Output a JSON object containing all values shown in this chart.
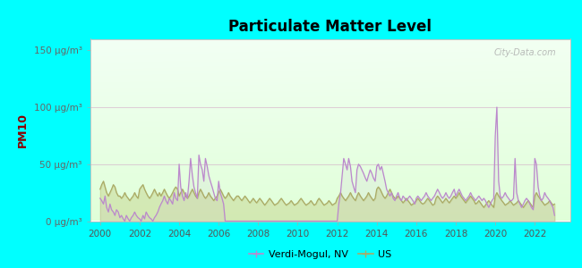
{
  "title": "Particulate Matter Level",
  "ylabel": "PM10",
  "background_outer": "#00FFFF",
  "verdi_color": "#bb88cc",
  "us_color": "#aaaa66",
  "ylim": [
    0,
    160
  ],
  "yticks": [
    0,
    50,
    100,
    150
  ],
  "ytick_labels": [
    "0 μg/m³",
    "50 μg/m³",
    "100 μg/m³",
    "150 μg/m³"
  ],
  "xlim_start": 1999.5,
  "xlim_end": 2023.8,
  "xticks": [
    2000,
    2002,
    2004,
    2006,
    2008,
    2010,
    2012,
    2014,
    2016,
    2018,
    2020,
    2022
  ],
  "verdi_x": [
    2000.0,
    2000.08,
    2000.17,
    2000.25,
    2000.33,
    2000.42,
    2000.5,
    2000.58,
    2000.67,
    2000.75,
    2000.83,
    2000.92,
    2001.0,
    2001.08,
    2001.17,
    2001.25,
    2001.33,
    2001.42,
    2001.5,
    2001.58,
    2001.67,
    2001.75,
    2001.83,
    2001.92,
    2002.0,
    2002.08,
    2002.17,
    2002.25,
    2002.33,
    2002.42,
    2002.5,
    2002.58,
    2002.67,
    2002.75,
    2002.83,
    2002.92,
    2003.0,
    2003.08,
    2003.17,
    2003.25,
    2003.33,
    2003.42,
    2003.5,
    2003.58,
    2003.67,
    2003.75,
    2003.83,
    2003.92,
    2004.0,
    2004.08,
    2004.17,
    2004.25,
    2004.33,
    2004.42,
    2004.5,
    2004.58,
    2004.67,
    2004.75,
    2004.83,
    2004.92,
    2005.0,
    2005.08,
    2005.17,
    2005.25,
    2005.33,
    2005.42,
    2005.5,
    2005.58,
    2005.67,
    2005.75,
    2005.83,
    2005.92,
    2006.0,
    2006.08,
    2006.17,
    2006.25,
    2006.33,
    2006.42,
    2006.5,
    2006.58,
    2006.67,
    2006.75,
    2006.83,
    2006.92,
    2007.0,
    2007.08,
    2007.17,
    2007.25,
    2007.33,
    2007.42,
    2007.5,
    2007.58,
    2007.67,
    2007.75,
    2007.83,
    2007.92,
    2008.0,
    2008.08,
    2008.17,
    2008.25,
    2008.33,
    2008.42,
    2008.5,
    2008.58,
    2008.67,
    2008.75,
    2008.83,
    2008.92,
    2009.0,
    2009.08,
    2009.17,
    2009.25,
    2009.33,
    2009.42,
    2009.5,
    2009.58,
    2009.67,
    2009.75,
    2009.83,
    2009.92,
    2010.0,
    2010.08,
    2010.17,
    2010.25,
    2010.33,
    2010.42,
    2010.5,
    2010.58,
    2010.67,
    2010.75,
    2010.83,
    2010.92,
    2011.0,
    2011.08,
    2011.17,
    2011.25,
    2011.33,
    2011.42,
    2011.5,
    2011.58,
    2011.67,
    2011.75,
    2011.83,
    2011.92,
    2012.0,
    2012.08,
    2012.17,
    2012.25,
    2012.33,
    2012.42,
    2012.5,
    2012.58,
    2012.67,
    2012.75,
    2012.83,
    2012.92,
    2013.0,
    2013.08,
    2013.17,
    2013.25,
    2013.33,
    2013.42,
    2013.5,
    2013.58,
    2013.67,
    2013.75,
    2013.83,
    2013.92,
    2014.0,
    2014.08,
    2014.17,
    2014.25,
    2014.33,
    2014.42,
    2014.5,
    2014.58,
    2014.67,
    2014.75,
    2014.83,
    2014.92,
    2015.0,
    2015.08,
    2015.17,
    2015.25,
    2015.33,
    2015.42,
    2015.5,
    2015.58,
    2015.67,
    2015.75,
    2015.83,
    2015.92,
    2016.0,
    2016.08,
    2016.17,
    2016.25,
    2016.33,
    2016.42,
    2016.5,
    2016.58,
    2016.67,
    2016.75,
    2016.83,
    2016.92,
    2017.0,
    2017.08,
    2017.17,
    2017.25,
    2017.33,
    2017.42,
    2017.5,
    2017.58,
    2017.67,
    2017.75,
    2017.83,
    2017.92,
    2018.0,
    2018.08,
    2018.17,
    2018.25,
    2018.33,
    2018.42,
    2018.5,
    2018.58,
    2018.67,
    2018.75,
    2018.83,
    2018.92,
    2019.0,
    2019.08,
    2019.17,
    2019.25,
    2019.33,
    2019.42,
    2019.5,
    2019.58,
    2019.67,
    2019.75,
    2019.83,
    2019.92,
    2020.0,
    2020.08,
    2020.17,
    2020.25,
    2020.33,
    2020.42,
    2020.5,
    2020.58,
    2020.67,
    2020.75,
    2020.83,
    2020.92,
    2021.0,
    2021.08,
    2021.17,
    2021.25,
    2021.33,
    2021.42,
    2021.5,
    2021.58,
    2021.67,
    2021.75,
    2021.83,
    2021.92,
    2022.0,
    2022.08,
    2022.17,
    2022.25,
    2022.33,
    2022.42,
    2022.5,
    2022.58,
    2022.67,
    2022.75,
    2022.83,
    2022.92,
    2023.0
  ],
  "verdi_y": [
    20,
    18,
    15,
    22,
    12,
    8,
    15,
    10,
    8,
    5,
    10,
    8,
    3,
    5,
    2,
    0,
    5,
    2,
    0,
    3,
    5,
    8,
    5,
    3,
    2,
    0,
    5,
    2,
    8,
    5,
    3,
    2,
    0,
    3,
    5,
    8,
    12,
    15,
    18,
    22,
    18,
    15,
    20,
    18,
    15,
    25,
    20,
    18,
    50,
    30,
    22,
    18,
    25,
    20,
    35,
    55,
    40,
    30,
    25,
    20,
    58,
    50,
    45,
    35,
    55,
    48,
    40,
    35,
    30,
    25,
    20,
    18,
    35,
    25,
    20,
    15,
    0,
    0,
    0,
    0,
    0,
    0,
    0,
    0,
    0,
    0,
    0,
    0,
    0,
    0,
    0,
    0,
    0,
    0,
    0,
    0,
    0,
    0,
    0,
    0,
    0,
    0,
    0,
    0,
    0,
    0,
    0,
    0,
    0,
    0,
    0,
    0,
    0,
    0,
    0,
    0,
    0,
    0,
    0,
    0,
    0,
    0,
    0,
    0,
    0,
    0,
    0,
    0,
    0,
    0,
    0,
    0,
    0,
    0,
    0,
    0,
    0,
    0,
    0,
    0,
    0,
    0,
    0,
    0,
    0,
    15,
    25,
    40,
    55,
    50,
    45,
    55,
    48,
    35,
    30,
    25,
    45,
    50,
    48,
    45,
    42,
    38,
    35,
    40,
    45,
    42,
    38,
    35,
    48,
    50,
    45,
    48,
    42,
    35,
    28,
    25,
    22,
    25,
    20,
    18,
    22,
    25,
    20,
    18,
    22,
    20,
    18,
    20,
    22,
    20,
    18,
    15,
    20,
    22,
    20,
    18,
    20,
    22,
    25,
    22,
    20,
    18,
    20,
    22,
    25,
    28,
    25,
    22,
    20,
    22,
    25,
    22,
    20,
    22,
    25,
    28,
    22,
    25,
    28,
    25,
    22,
    20,
    18,
    20,
    22,
    25,
    22,
    20,
    18,
    20,
    22,
    20,
    18,
    20,
    18,
    15,
    12,
    15,
    18,
    20,
    75,
    100,
    35,
    22,
    20,
    22,
    25,
    22,
    20,
    18,
    18,
    20,
    55,
    25,
    18,
    15,
    12,
    15,
    18,
    20,
    18,
    15,
    12,
    10,
    55,
    50,
    30,
    22,
    18,
    20,
    25,
    22,
    20,
    18,
    15,
    12,
    5
  ],
  "us_x": [
    2000.0,
    2000.08,
    2000.17,
    2000.25,
    2000.33,
    2000.42,
    2000.5,
    2000.58,
    2000.67,
    2000.75,
    2000.83,
    2000.92,
    2001.0,
    2001.08,
    2001.17,
    2001.25,
    2001.33,
    2001.42,
    2001.5,
    2001.58,
    2001.67,
    2001.75,
    2001.83,
    2001.92,
    2002.0,
    2002.08,
    2002.17,
    2002.25,
    2002.33,
    2002.42,
    2002.5,
    2002.58,
    2002.67,
    2002.75,
    2002.83,
    2002.92,
    2003.0,
    2003.08,
    2003.17,
    2003.25,
    2003.33,
    2003.42,
    2003.5,
    2003.58,
    2003.67,
    2003.75,
    2003.83,
    2003.92,
    2004.0,
    2004.08,
    2004.17,
    2004.25,
    2004.33,
    2004.42,
    2004.5,
    2004.58,
    2004.67,
    2004.75,
    2004.83,
    2004.92,
    2005.0,
    2005.08,
    2005.17,
    2005.25,
    2005.33,
    2005.42,
    2005.5,
    2005.58,
    2005.67,
    2005.75,
    2005.83,
    2005.92,
    2006.0,
    2006.08,
    2006.17,
    2006.25,
    2006.33,
    2006.42,
    2006.5,
    2006.58,
    2006.67,
    2006.75,
    2006.83,
    2006.92,
    2007.0,
    2007.08,
    2007.17,
    2007.25,
    2007.33,
    2007.42,
    2007.5,
    2007.58,
    2007.67,
    2007.75,
    2007.83,
    2007.92,
    2008.0,
    2008.08,
    2008.17,
    2008.25,
    2008.33,
    2008.42,
    2008.5,
    2008.58,
    2008.67,
    2008.75,
    2008.83,
    2008.92,
    2009.0,
    2009.08,
    2009.17,
    2009.25,
    2009.33,
    2009.42,
    2009.5,
    2009.58,
    2009.67,
    2009.75,
    2009.83,
    2009.92,
    2010.0,
    2010.08,
    2010.17,
    2010.25,
    2010.33,
    2010.42,
    2010.5,
    2010.58,
    2010.67,
    2010.75,
    2010.83,
    2010.92,
    2011.0,
    2011.08,
    2011.17,
    2011.25,
    2011.33,
    2011.42,
    2011.5,
    2011.58,
    2011.67,
    2011.75,
    2011.83,
    2011.92,
    2012.0,
    2012.08,
    2012.17,
    2012.25,
    2012.33,
    2012.42,
    2012.5,
    2012.58,
    2012.67,
    2012.75,
    2012.83,
    2012.92,
    2013.0,
    2013.08,
    2013.17,
    2013.25,
    2013.33,
    2013.42,
    2013.5,
    2013.58,
    2013.67,
    2013.75,
    2013.83,
    2013.92,
    2014.0,
    2014.08,
    2014.17,
    2014.25,
    2014.33,
    2014.42,
    2014.5,
    2014.58,
    2014.67,
    2014.75,
    2014.83,
    2014.92,
    2015.0,
    2015.08,
    2015.17,
    2015.25,
    2015.33,
    2015.42,
    2015.5,
    2015.58,
    2015.67,
    2015.75,
    2015.83,
    2015.92,
    2016.0,
    2016.08,
    2016.17,
    2016.25,
    2016.33,
    2016.42,
    2016.5,
    2016.58,
    2016.67,
    2016.75,
    2016.83,
    2016.92,
    2017.0,
    2017.08,
    2017.17,
    2017.25,
    2017.33,
    2017.42,
    2017.5,
    2017.58,
    2017.67,
    2017.75,
    2017.83,
    2017.92,
    2018.0,
    2018.08,
    2018.17,
    2018.25,
    2018.33,
    2018.42,
    2018.5,
    2018.58,
    2018.67,
    2018.75,
    2018.83,
    2018.92,
    2019.0,
    2019.08,
    2019.17,
    2019.25,
    2019.33,
    2019.42,
    2019.5,
    2019.58,
    2019.67,
    2019.75,
    2019.83,
    2019.92,
    2020.0,
    2020.08,
    2020.17,
    2020.25,
    2020.33,
    2020.42,
    2020.5,
    2020.58,
    2020.67,
    2020.75,
    2020.83,
    2020.92,
    2021.0,
    2021.08,
    2021.17,
    2021.25,
    2021.33,
    2021.42,
    2021.5,
    2021.58,
    2021.67,
    2021.75,
    2021.83,
    2021.92,
    2022.0,
    2022.08,
    2022.17,
    2022.25,
    2022.33,
    2022.42,
    2022.5,
    2022.58,
    2022.67,
    2022.75,
    2022.83,
    2022.92,
    2023.0
  ],
  "us_y": [
    28,
    32,
    35,
    30,
    25,
    22,
    25,
    28,
    32,
    30,
    25,
    22,
    22,
    20,
    22,
    25,
    22,
    20,
    18,
    20,
    22,
    25,
    22,
    20,
    28,
    30,
    32,
    28,
    25,
    22,
    20,
    22,
    25,
    28,
    25,
    22,
    25,
    22,
    25,
    28,
    25,
    22,
    20,
    22,
    25,
    28,
    30,
    28,
    22,
    25,
    28,
    25,
    22,
    20,
    22,
    25,
    28,
    25,
    22,
    20,
    25,
    28,
    25,
    22,
    20,
    22,
    25,
    22,
    20,
    18,
    20,
    22,
    25,
    28,
    25,
    22,
    20,
    22,
    25,
    22,
    20,
    18,
    20,
    22,
    22,
    20,
    18,
    20,
    22,
    20,
    18,
    16,
    18,
    20,
    18,
    16,
    18,
    20,
    18,
    16,
    14,
    16,
    18,
    20,
    18,
    16,
    14,
    15,
    16,
    18,
    20,
    18,
    16,
    14,
    15,
    16,
    18,
    16,
    14,
    15,
    16,
    18,
    20,
    18,
    16,
    14,
    15,
    16,
    18,
    16,
    14,
    15,
    18,
    20,
    18,
    16,
    14,
    15,
    16,
    18,
    16,
    14,
    15,
    16,
    20,
    22,
    25,
    22,
    20,
    18,
    20,
    22,
    25,
    22,
    20,
    18,
    22,
    25,
    22,
    20,
    18,
    20,
    22,
    25,
    22,
    20,
    18,
    20,
    28,
    30,
    28,
    25,
    22,
    20,
    22,
    25,
    28,
    25,
    22,
    20,
    20,
    22,
    20,
    18,
    16,
    18,
    20,
    18,
    16,
    14,
    15,
    16,
    18,
    20,
    18,
    16,
    15,
    16,
    18,
    20,
    18,
    16,
    14,
    15,
    20,
    22,
    20,
    18,
    16,
    18,
    20,
    18,
    16,
    18,
    20,
    22,
    20,
    22,
    25,
    22,
    20,
    18,
    16,
    18,
    20,
    22,
    20,
    18,
    15,
    16,
    18,
    16,
    14,
    12,
    14,
    16,
    18,
    16,
    14,
    12,
    22,
    25,
    22,
    20,
    18,
    16,
    14,
    15,
    16,
    18,
    16,
    14,
    15,
    16,
    18,
    16,
    14,
    12,
    14,
    16,
    18,
    16,
    14,
    12,
    22,
    25,
    22,
    20,
    18,
    16,
    14,
    15,
    16,
    18,
    16,
    14,
    15
  ]
}
